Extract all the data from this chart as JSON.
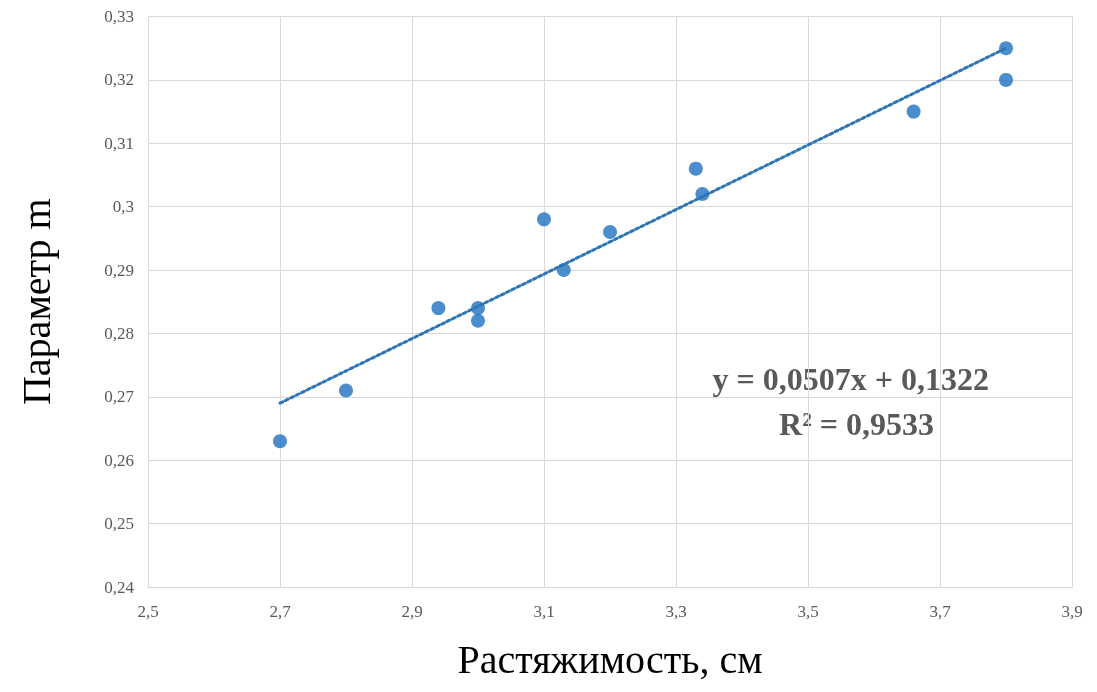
{
  "chart_data": {
    "type": "scatter",
    "xlabel": "Растяжимость, см",
    "ylabel": "Параметр m",
    "xlim": [
      2.5,
      3.9
    ],
    "xticks": [
      {
        "value": 2.5,
        "label": "2,5"
      },
      {
        "value": 2.7,
        "label": "2,7"
      },
      {
        "value": 2.9,
        "label": "2,9"
      },
      {
        "value": 3.1,
        "label": "3,1"
      },
      {
        "value": 3.3,
        "label": "3,3"
      },
      {
        "value": 3.5,
        "label": "3,5"
      },
      {
        "value": 3.7,
        "label": "3,7"
      },
      {
        "value": 3.9,
        "label": "3,9"
      }
    ],
    "ylim": [
      0.24,
      0.33
    ],
    "yticks": [
      {
        "value": 0.24,
        "label": "0,24"
      },
      {
        "value": 0.25,
        "label": "0,25"
      },
      {
        "value": 0.26,
        "label": "0,26"
      },
      {
        "value": 0.27,
        "label": "0,27"
      },
      {
        "value": 0.28,
        "label": "0,28"
      },
      {
        "value": 0.29,
        "label": "0,29"
      },
      {
        "value": 0.3,
        "label": "0,3"
      },
      {
        "value": 0.31,
        "label": "0,31"
      },
      {
        "value": 0.32,
        "label": "0,32"
      },
      {
        "value": 0.33,
        "label": "0,33"
      }
    ],
    "grid": true,
    "marker": "circle",
    "annotations": [
      "y = 0,0507x + 0,1322",
      "R² = 0,9533"
    ],
    "series": [
      {
        "color": "#1f70c1",
        "x": [
          2.7,
          2.8,
          2.94,
          3.0,
          3.0,
          3.1,
          3.13,
          3.2,
          3.33,
          3.34,
          3.66,
          3.8,
          3.8
        ],
        "values": [
          0.263,
          0.271,
          0.284,
          0.284,
          0.282,
          0.298,
          0.29,
          0.296,
          0.306,
          0.302,
          0.315,
          0.325,
          0.32
        ]
      },
      {
        "type": "line",
        "color": "#2e75b6",
        "line_style": "dotted",
        "marker": "none",
        "x": [
          2.7,
          3.8
        ],
        "values": [
          0.269,
          0.325
        ]
      }
    ]
  }
}
